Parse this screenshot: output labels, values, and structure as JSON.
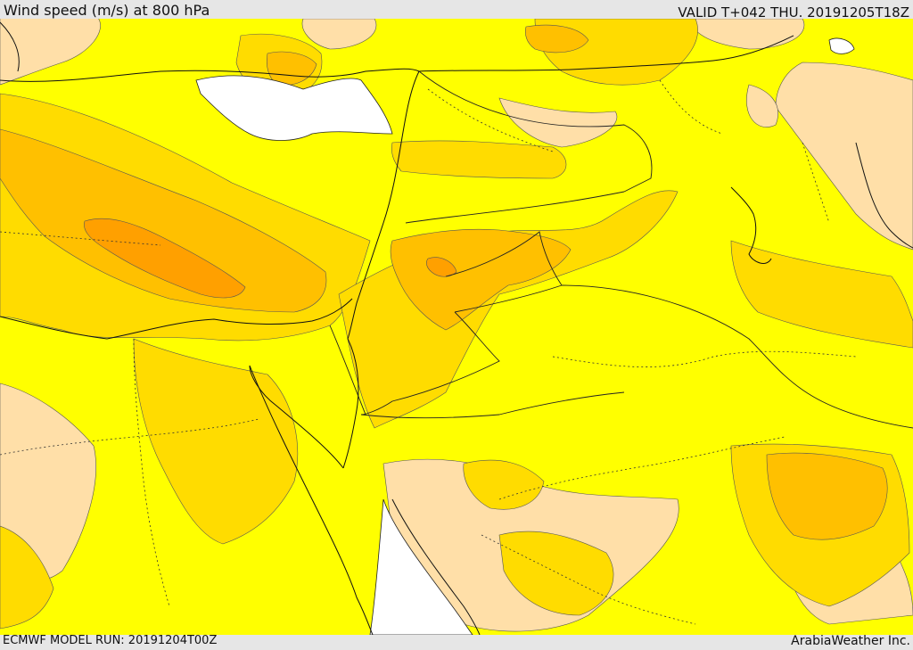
{
  "header": {
    "title": "Wind speed (m/s) at 800 hPa",
    "valid_time": "VALID T+042 THU. 20191205T18Z"
  },
  "footer": {
    "model_run": "ECMWF MODEL RUN: 20191204T00Z",
    "credit": "ArabiaWeather Inc."
  },
  "map": {
    "field": "wind speed",
    "level": "800 hPa",
    "colors": {
      "below_band": "#ffdfa8",
      "base_band": "#ffff00",
      "band_2": "#ffdc00",
      "band_3": "#ffc000",
      "band_4": "#ffa000",
      "no_data": "#ffffff"
    }
  }
}
